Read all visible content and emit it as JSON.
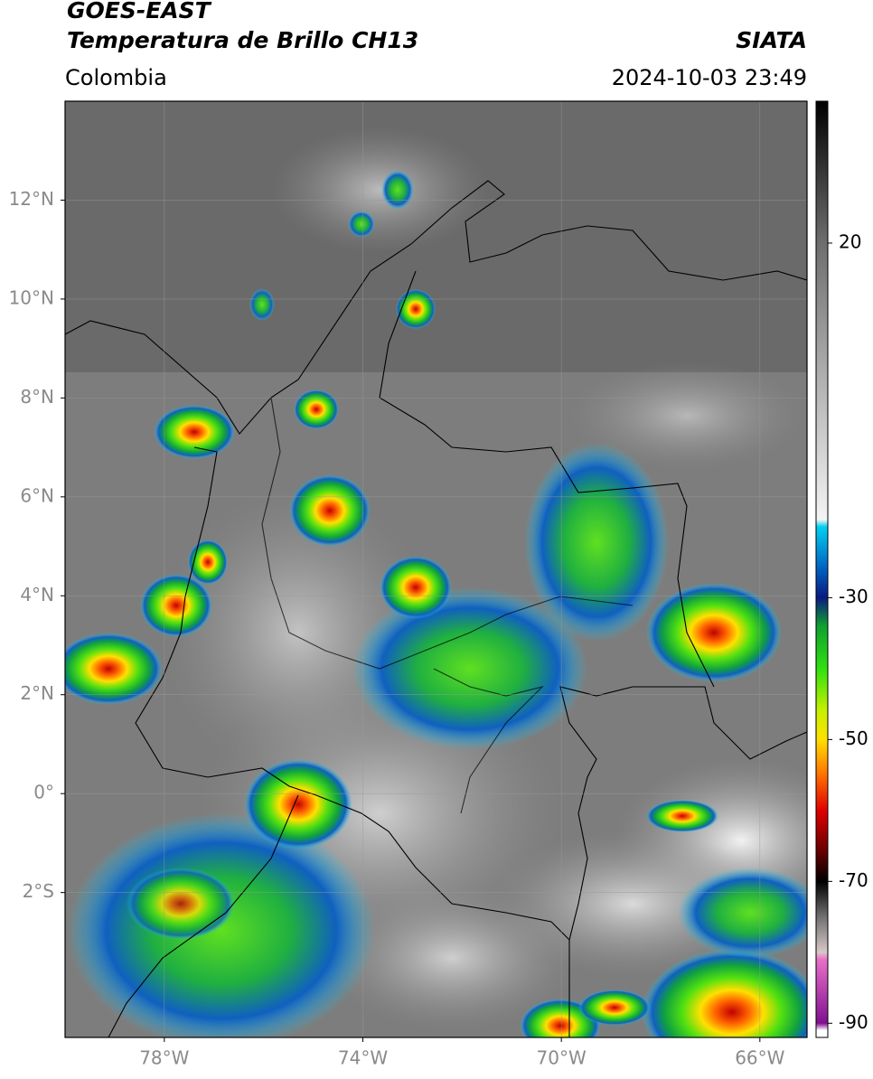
{
  "header": {
    "title_line1": "GOES-EAST",
    "title_line2": "Temperatura de Brillo CH13",
    "region": "Colombia",
    "source": "SIATA",
    "datetime": "2024-10-03 23:49"
  },
  "map": {
    "xlim": [
      -80,
      -65.05
    ],
    "ylim": [
      -4.93,
      14
    ],
    "xticks": [
      {
        "value": -78,
        "label": "78°W"
      },
      {
        "value": -74,
        "label": "74°W"
      },
      {
        "value": -70,
        "label": "70°W"
      },
      {
        "value": -66,
        "label": "66°W"
      }
    ],
    "yticks": [
      {
        "value": -2,
        "label": "2°S"
      },
      {
        "value": 0,
        "label": "0°"
      },
      {
        "value": 2,
        "label": "2°N"
      },
      {
        "value": 4,
        "label": "4°N"
      },
      {
        "value": 6,
        "label": "6°N"
      },
      {
        "value": 8,
        "label": "8°N"
      },
      {
        "value": 10,
        "label": "10°N"
      },
      {
        "value": 12,
        "label": "12°N"
      }
    ],
    "grid": true
  },
  "colorbar": {
    "lim": [
      -92,
      40
    ],
    "ticks": [
      20,
      -30,
      -50,
      -70,
      -90
    ],
    "stops": [
      {
        "value": 40,
        "color": "#000000"
      },
      {
        "value": 20,
        "color": "#6e6e6e"
      },
      {
        "value": -19,
        "color": "#f4f4f4"
      },
      {
        "value": -20,
        "color": "#00d0f0"
      },
      {
        "value": -26,
        "color": "#0060c0"
      },
      {
        "value": -30,
        "color": "#0a1a80"
      },
      {
        "value": -34,
        "color": "#10a030"
      },
      {
        "value": -40,
        "color": "#30e010"
      },
      {
        "value": -46,
        "color": "#c8f000"
      },
      {
        "value": -50,
        "color": "#ffe000"
      },
      {
        "value": -55,
        "color": "#ff7000"
      },
      {
        "value": -60,
        "color": "#e00000"
      },
      {
        "value": -66,
        "color": "#600000"
      },
      {
        "value": -70,
        "color": "#000000"
      },
      {
        "value": -75,
        "color": "#707070"
      },
      {
        "value": -80,
        "color": "#d8c8c8"
      },
      {
        "value": -81,
        "color": "#e870c8"
      },
      {
        "value": -90,
        "color": "#801090"
      },
      {
        "value": -91,
        "color": "#ffffff"
      }
    ]
  }
}
